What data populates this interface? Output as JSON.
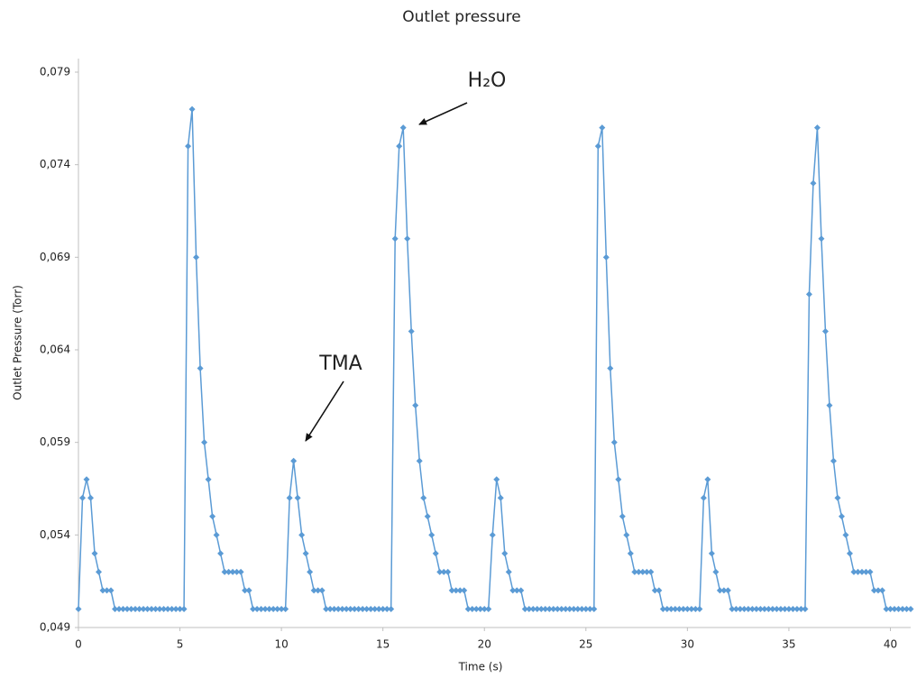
{
  "chart_data": {
    "type": "line",
    "title": "Outlet pressure",
    "x_label": "Time (s)",
    "y_label": "Outlet Pressure (Torr)",
    "annotations": [
      {
        "text": "TMA",
        "x": 10.6,
        "y": 0.058
      },
      {
        "text": "H₂O",
        "x": 16.0,
        "y": 0.076
      }
    ],
    "color": "#5b9bd5",
    "grid": false,
    "xlim": [
      0,
      41
    ],
    "xticks": [
      0,
      5,
      10,
      15,
      20,
      25,
      30,
      35,
      40
    ],
    "ylim": [
      0.049,
      0.079
    ],
    "yticks": [
      {
        "value": 0.049,
        "label": "0,049"
      },
      {
        "value": 0.054,
        "label": "0,054"
      },
      {
        "value": 0.059,
        "label": "0,059"
      },
      {
        "value": 0.064,
        "label": "0,064"
      },
      {
        "value": 0.069,
        "label": "0,069"
      },
      {
        "value": 0.074,
        "label": "0,074"
      },
      {
        "value": 0.079,
        "label": "0,079"
      }
    ],
    "x": [
      0,
      0.2,
      0.4,
      0.6,
      0.8,
      1,
      1.2,
      1.4,
      1.6,
      1.8,
      2,
      2.2,
      2.4,
      2.6,
      2.8,
      3,
      3.2,
      3.4,
      3.6,
      3.8,
      4,
      4.2,
      4.4,
      4.6,
      4.8,
      5,
      5.2,
      5.4,
      5.6,
      5.8,
      6,
      6.2,
      6.4,
      6.6,
      6.8,
      7,
      7.2,
      7.4,
      7.6,
      7.8,
      8,
      8.2,
      8.4,
      8.6,
      8.8,
      9,
      9.2,
      9.4,
      9.6,
      9.8,
      10,
      10.2,
      10.4,
      10.6,
      10.8,
      11,
      11.2,
      11.4,
      11.6,
      11.8,
      12,
      12.2,
      12.4,
      12.6,
      12.8,
      13,
      13.2,
      13.4,
      13.6,
      13.8,
      14,
      14.2,
      14.4,
      14.6,
      14.8,
      15,
      15.2,
      15.4,
      15.6,
      15.8,
      16,
      16.2,
      16.4,
      16.6,
      16.8,
      17,
      17.2,
      17.4,
      17.6,
      17.8,
      18,
      18.2,
      18.4,
      18.6,
      18.8,
      19,
      19.2,
      19.4,
      19.6,
      19.8,
      20,
      20.2,
      20.4,
      20.6,
      20.8,
      21,
      21.2,
      21.4,
      21.6,
      21.8,
      22,
      22.2,
      22.4,
      22.6,
      22.8,
      23,
      23.2,
      23.4,
      23.6,
      23.8,
      24,
      24.2,
      24.4,
      24.6,
      24.8,
      25,
      25.2,
      25.4,
      25.6,
      25.8,
      26,
      26.2,
      26.4,
      26.6,
      26.8,
      27,
      27.2,
      27.4,
      27.6,
      27.8,
      28,
      28.2,
      28.4,
      28.6,
      28.8,
      29,
      29.2,
      29.4,
      29.6,
      29.8,
      30,
      30.2,
      30.4,
      30.6,
      30.8,
      31,
      31.2,
      31.4,
      31.6,
      31.8,
      32,
      32.2,
      32.4,
      32.6,
      32.8,
      33,
      33.2,
      33.4,
      33.6,
      33.8,
      34,
      34.2,
      34.4,
      34.6,
      34.8,
      35,
      35.2,
      35.4,
      35.6,
      35.8,
      36,
      36.2,
      36.4,
      36.6,
      36.8,
      37,
      37.2,
      37.4,
      37.6,
      37.8,
      38,
      38.2,
      38.4,
      38.6,
      38.8,
      39,
      39.2,
      39.4,
      39.6,
      39.8,
      40,
      40.2,
      40.4,
      40.6,
      40.8,
      41
    ],
    "values": [
      0.05,
      0.056,
      0.057,
      0.056,
      0.053,
      0.052,
      0.051,
      0.051,
      0.051,
      0.05,
      0.05,
      0.05,
      0.05,
      0.05,
      0.05,
      0.05,
      0.05,
      0.05,
      0.05,
      0.05,
      0.05,
      0.05,
      0.05,
      0.05,
      0.05,
      0.05,
      0.05,
      0.075,
      0.077,
      0.069,
      0.063,
      0.059,
      0.057,
      0.055,
      0.054,
      0.053,
      0.052,
      0.052,
      0.052,
      0.052,
      0.052,
      0.051,
      0.051,
      0.05,
      0.05,
      0.05,
      0.05,
      0.05,
      0.05,
      0.05,
      0.05,
      0.05,
      0.056,
      0.058,
      0.056,
      0.054,
      0.053,
      0.052,
      0.051,
      0.051,
      0.051,
      0.05,
      0.05,
      0.05,
      0.05,
      0.05,
      0.05,
      0.05,
      0.05,
      0.05,
      0.05,
      0.05,
      0.05,
      0.05,
      0.05,
      0.05,
      0.05,
      0.05,
      0.07,
      0.075,
      0.076,
      0.07,
      0.065,
      0.061,
      0.058,
      0.056,
      0.055,
      0.054,
      0.053,
      0.052,
      0.052,
      0.052,
      0.051,
      0.051,
      0.051,
      0.051,
      0.05,
      0.05,
      0.05,
      0.05,
      0.05,
      0.05,
      0.054,
      0.057,
      0.056,
      0.053,
      0.052,
      0.051,
      0.051,
      0.051,
      0.05,
      0.05,
      0.05,
      0.05,
      0.05,
      0.05,
      0.05,
      0.05,
      0.05,
      0.05,
      0.05,
      0.05,
      0.05,
      0.05,
      0.05,
      0.05,
      0.05,
      0.05,
      0.075,
      0.076,
      0.069,
      0.063,
      0.059,
      0.057,
      0.055,
      0.054,
      0.053,
      0.052,
      0.052,
      0.052,
      0.052,
      0.052,
      0.051,
      0.051,
      0.05,
      0.05,
      0.05,
      0.05,
      0.05,
      0.05,
      0.05,
      0.05,
      0.05,
      0.05,
      0.056,
      0.057,
      0.053,
      0.052,
      0.051,
      0.051,
      0.051,
      0.05,
      0.05,
      0.05,
      0.05,
      0.05,
      0.05,
      0.05,
      0.05,
      0.05,
      0.05,
      0.05,
      0.05,
      0.05,
      0.05,
      0.05,
      0.05,
      0.05,
      0.05,
      0.05,
      0.067,
      0.073,
      0.076,
      0.07,
      0.065,
      0.061,
      0.058,
      0.056,
      0.055,
      0.054,
      0.053,
      0.052,
      0.052,
      0.052,
      0.052,
      0.052,
      0.051,
      0.051,
      0.051,
      0.05,
      0.05,
      0.05,
      0.05,
      0.05,
      0.05,
      0.05
    ]
  }
}
